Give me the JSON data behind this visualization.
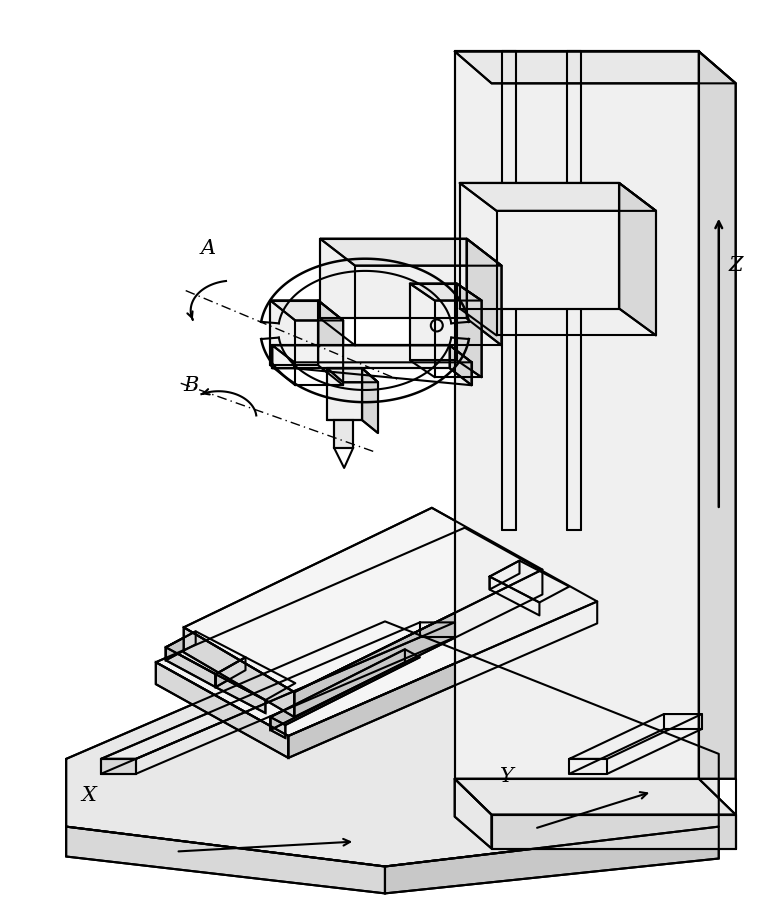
{
  "background_color": "#ffffff",
  "line_color": "#000000",
  "line_width": 1.5,
  "fig_width": 7.63,
  "fig_height": 9.05,
  "dpi": 100,
  "label_A": "A",
  "label_B": "B",
  "label_X": "X",
  "label_Y": "Y",
  "label_Z": "Z",
  "label_fontsize": 15,
  "face_light": "#f5f5f5",
  "face_mid": "#e8e8e8",
  "face_dark": "#d8d8d8",
  "face_darker": "#c8c8c8"
}
